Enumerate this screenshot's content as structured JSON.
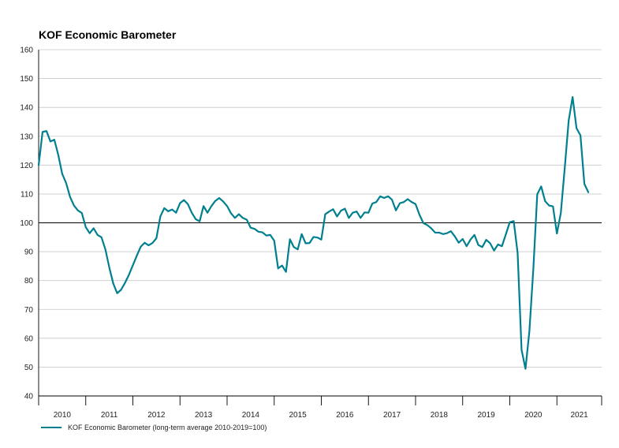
{
  "chart_data": {
    "type": "line",
    "title": "KOF Economic Barometer",
    "xlabel": "",
    "ylabel": "",
    "ylim": [
      40,
      160
    ],
    "yticks": [
      40,
      50,
      60,
      70,
      80,
      90,
      100,
      110,
      120,
      130,
      140,
      150,
      160
    ],
    "xlim": [
      2010.0,
      2021.95
    ],
    "year_labels": [
      "2010",
      "2011",
      "2012",
      "2013",
      "2014",
      "2015",
      "2016",
      "2017",
      "2018",
      "2019",
      "2020",
      "2021"
    ],
    "reference_line": 100,
    "grid": true,
    "legend_position": "bottom-left",
    "series": [
      {
        "name": "KOF Economic Barometer (long-term average 2010-2019=100)",
        "color": "#00808F",
        "start": 2010.0,
        "frequency": "monthly",
        "values": [
          120,
          131.5,
          131.8,
          128.2,
          128.8,
          123.5,
          117,
          113.8,
          109,
          106,
          104.3,
          103.4,
          98.5,
          96.4,
          98.1,
          95.8,
          95,
          90.8,
          84.5,
          79,
          75.6,
          76.8,
          79.2,
          82,
          85.3,
          88.6,
          91.7,
          93.1,
          92.2,
          93,
          94.7,
          102.2,
          105.1,
          104,
          104.6,
          103.5,
          106.8,
          107.9,
          106.5,
          103.5,
          101.3,
          100.5,
          105.8,
          103.5,
          105.8,
          107.6,
          108.6,
          107.4,
          105.8,
          103.3,
          101.7,
          103,
          101.7,
          101.1,
          98.3,
          97.9,
          96.9,
          96.7,
          95.6,
          95.8,
          93.8,
          84.2,
          85.2,
          83,
          94.3,
          91.6,
          90.8,
          96.1,
          92.9,
          93,
          95.1,
          94.9,
          94.2,
          103,
          103.9,
          104.7,
          102.2,
          104.2,
          104.9,
          101.7,
          103.5,
          103.9,
          101.7,
          103.6,
          103.5,
          106.7,
          107.2,
          109.2,
          108.6,
          109.2,
          108,
          104.3,
          106.8,
          107.2,
          108.2,
          107.2,
          106.5,
          102.8,
          99.9,
          99.2,
          98.1,
          96.6,
          96.6,
          96.1,
          96.4,
          97.1,
          95.3,
          93.1,
          94.4,
          91.9,
          94.2,
          95.8,
          92.3,
          91.6,
          94.1,
          92.9,
          90.4,
          92.5,
          91.9,
          96,
          100.2,
          100.6,
          89.5,
          56,
          49.4,
          62.5,
          84,
          109.9,
          112.6,
          107.5,
          106,
          105.7,
          96.3,
          103.4,
          119,
          135.4,
          143.6,
          132.8,
          130.3,
          113.5,
          110.6
        ]
      }
    ]
  },
  "legend": {
    "label": "KOF Economic Barometer (long-term average 2010-2019=100)"
  }
}
